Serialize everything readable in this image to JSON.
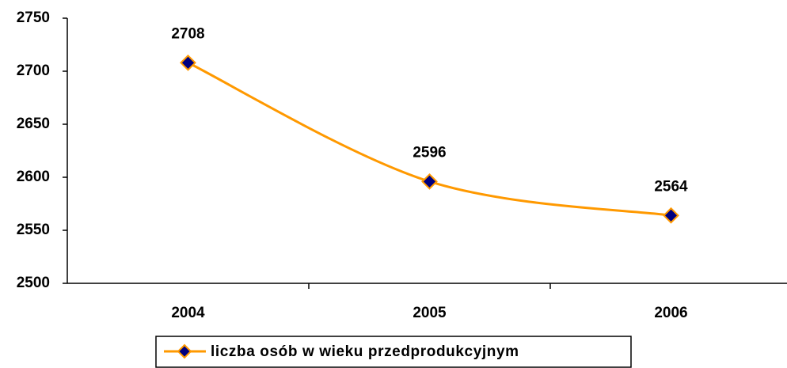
{
  "chart_data": {
    "type": "line",
    "categories": [
      "2004",
      "2005",
      "2006"
    ],
    "series": [
      {
        "name": "liczba osób w wieku przedprodukcyjnym",
        "color": "#ff9900",
        "marker_color": "#000080",
        "values": [
          2708,
          2596,
          2564
        ]
      }
    ],
    "ylim": [
      2500,
      2750
    ],
    "yticks": [
      2500,
      2550,
      2600,
      2650,
      2700,
      2750
    ],
    "grid": false,
    "smooth": true,
    "data_labels": true,
    "legend": "bottom"
  }
}
